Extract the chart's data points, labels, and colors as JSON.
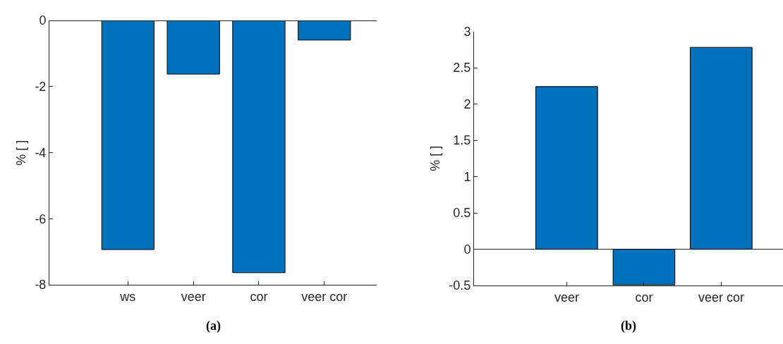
{
  "chart_data": [
    {
      "type": "bar",
      "categories": [
        "ws",
        "veer",
        "cor",
        "veer cor"
      ],
      "values": [
        -6.93,
        -1.62,
        -7.63,
        -0.59
      ],
      "color": "#0072bd",
      "ylabel": "% [ ]",
      "ylim": [
        -8,
        0
      ],
      "yticks": [
        -8,
        -6,
        -4,
        -2,
        0
      ],
      "annotations": [
        "(a)"
      ]
    },
    {
      "type": "bar",
      "categories": [
        "veer",
        "cor",
        "veer cor"
      ],
      "values": [
        2.24,
        -0.49,
        2.78
      ],
      "color": "#0072bd",
      "ylabel": "% [ ]",
      "ylim": [
        -0.5,
        3
      ],
      "yticks": [
        -0.5,
        0,
        0.5,
        1,
        1.5,
        2,
        2.5,
        3
      ],
      "annotations": [
        "(b)"
      ]
    }
  ]
}
